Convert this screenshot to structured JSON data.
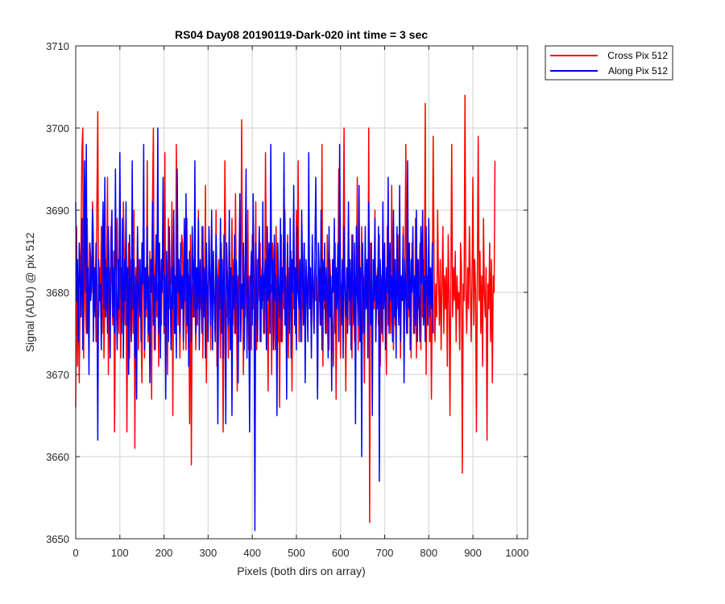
{
  "chart_data": {
    "type": "line",
    "title": "RS04 Day08 20190119-Dark-020 int time = 3 sec",
    "xlabel": "Pixels (both dirs on array)",
    "ylabel": "Signal (ADU) @ pix 512",
    "xlim": [
      0,
      1024
    ],
    "ylim": [
      3650,
      3710
    ],
    "xticks": [
      0,
      100,
      200,
      300,
      400,
      500,
      600,
      700,
      800,
      900,
      1000
    ],
    "yticks": [
      3650,
      3660,
      3670,
      3680,
      3690,
      3700,
      3710
    ],
    "grid": true,
    "legend_position": "outside-top-right",
    "x_start": 0,
    "x_step": 2,
    "series": [
      {
        "name": "Cross Pix 512",
        "color": "#ff0000",
        "y": [
          3666,
          3688,
          3671,
          3682,
          3669,
          3680,
          3686,
          3697,
          3700,
          3672,
          3694,
          3678,
          3675,
          3689,
          3681,
          3673,
          3686,
          3684,
          3680,
          3691,
          3687,
          3679,
          3683,
          3674,
          3691,
          3702,
          3677,
          3683,
          3680,
          3688,
          3675,
          3685,
          3672,
          3679,
          3684,
          3681,
          3694,
          3670,
          3683,
          3677,
          3688,
          3681,
          3676,
          3685,
          3663,
          3678,
          3682,
          3689,
          3680,
          3675,
          3687,
          3672,
          3683,
          3679,
          3691,
          3684,
          3676,
          3682,
          3663,
          3680,
          3686,
          3672,
          3684,
          3678,
          3681,
          3675,
          3690,
          3661,
          3683,
          3679,
          3687,
          3673,
          3684,
          3680,
          3676,
          3669,
          3682,
          3688,
          3672,
          3681,
          3677,
          3696,
          3674,
          3680,
          3685,
          3678,
          3667,
          3691,
          3700,
          3673,
          3682,
          3686,
          3677,
          3681,
          3671,
          3685,
          3679,
          3676,
          3683,
          3689,
          3675,
          3697,
          3674,
          3684,
          3670,
          3689,
          3678,
          3682,
          3681,
          3691,
          3665,
          3684,
          3679,
          3675,
          3698,
          3681,
          3676,
          3684,
          3672,
          3680,
          3687,
          3686,
          3673,
          3683,
          3679,
          3673,
          3689,
          3675,
          3682,
          3664,
          3687,
          3659,
          3681,
          3677,
          3684,
          3681,
          3673,
          3680,
          3676,
          3690,
          3674,
          3683,
          3678,
          3688,
          3672,
          3682,
          3680,
          3693,
          3669,
          3681,
          3676,
          3685,
          3682,
          3673,
          3689,
          3677,
          3683,
          3679,
          3675,
          3690,
          3671,
          3681,
          3684,
          3678,
          3672,
          3686,
          3680,
          3663,
          3678,
          3696,
          3684,
          3677,
          3679,
          3672,
          3686,
          3681,
          3678,
          3689,
          3676,
          3684,
          3675,
          3692,
          3680,
          3668,
          3682,
          3674,
          3684,
          3679,
          3701,
          3682,
          3670,
          3681,
          3677,
          3684,
          3676,
          3690,
          3673,
          3682,
          3680,
          3673,
          3687,
          3678,
          3681,
          3676,
          3691,
          3673,
          3684,
          3679,
          3682,
          3686,
          3674,
          3683,
          3679,
          3680,
          3675,
          3697,
          3683,
          3680,
          3668,
          3684,
          3677,
          3681,
          3670,
          3686,
          3682,
          3679,
          3673,
          3688,
          3681,
          3674,
          3680,
          3666,
          3682,
          3687,
          3674,
          3682,
          3678,
          3690,
          3681,
          3675,
          3687,
          3672,
          3683,
          3679,
          3685,
          3668,
          3681,
          3678,
          3683,
          3675,
          3690,
          3680,
          3696,
          3674,
          3682,
          3680,
          3674,
          3686,
          3679,
          3684,
          3672,
          3683,
          3681,
          3676,
          3689,
          3678,
          3682,
          3673,
          3686,
          3680,
          3675,
          3684,
          3679,
          3682,
          3668,
          3681,
          3679,
          3683,
          3676,
          3698,
          3671,
          3681,
          3678,
          3682,
          3675,
          3687,
          3680,
          3673,
          3684,
          3681,
          3680,
          3676,
          3671,
          3683,
          3686,
          3667,
          3681,
          3679,
          3695,
          3682,
          3672,
          3681,
          3677,
          3684,
          3700,
          3680,
          3668,
          3682,
          3679,
          3689,
          3676,
          3683,
          3681,
          3672,
          3687,
          3679,
          3674,
          3682,
          3680,
          3694,
          3673,
          3683,
          3678,
          3681,
          3688,
          3675,
          3682,
          3669,
          3681,
          3679,
          3684,
          3675,
          3700,
          3652,
          3686,
          3680,
          3673,
          3682,
          3678,
          3690,
          3674,
          3681,
          3683,
          3676,
          3687,
          3671,
          3680,
          3682,
          3674,
          3685,
          3679,
          3681,
          3670,
          3688,
          3676,
          3682,
          3679,
          3675,
          3693,
          3680,
          3673,
          3684,
          3676,
          3681,
          3678,
          3687,
          3677,
          3683,
          3672,
          3681,
          3679,
          3688,
          3674,
          3682,
          3698,
          3680,
          3675,
          3684,
          3677,
          3682,
          3672,
          3686,
          3683,
          3679,
          3675,
          3689,
          3672,
          3684,
          3678,
          3681,
          3686,
          3673,
          3681,
          3677,
          3684,
          3680,
          3703,
          3670,
          3682,
          3679,
          3686,
          3674,
          3682,
          3667,
          3680,
          3699,
          3683,
          3674,
          3681,
          3677,
          3690,
          3682,
          3676,
          3684,
          3673,
          3681,
          3688,
          3675,
          3682,
          3678,
          3683,
          3671,
          3687,
          3680,
          3665,
          3681,
          3698,
          3677,
          3683,
          3679,
          3685,
          3674,
          3682,
          3678,
          3680,
          3673,
          3686,
          3683,
          3658,
          3681,
          3679,
          3704,
          3680,
          3675,
          3683,
          3678,
          3688,
          3682,
          3674,
          3681,
          3694,
          3676,
          3684,
          3680,
          3663,
          3682,
          3699,
          3679,
          3685,
          3675,
          3682,
          3671,
          3689,
          3680,
          3677,
          3683,
          3662,
          3681,
          3678,
          3686,
          3674,
          3684,
          3669,
          3682,
          3680,
          3696
        ]
      },
      {
        "name": "Along Pix 512",
        "color": "#0000ff",
        "y": [
          3691,
          3679,
          3684,
          3674,
          3686,
          3681,
          3677,
          3689,
          3673,
          3684,
          3696,
          3680,
          3698,
          3675,
          3683,
          3670,
          3686,
          3679,
          3681,
          3690,
          3674,
          3683,
          3677,
          3686,
          3681,
          3662,
          3684,
          3679,
          3681,
          3673,
          3685,
          3691,
          3678,
          3694,
          3677,
          3683,
          3675,
          3688,
          3680,
          3672,
          3686,
          3690,
          3677,
          3683,
          3675,
          3695,
          3680,
          3673,
          3684,
          3678,
          3697,
          3682,
          3675,
          3689,
          3672,
          3684,
          3679,
          3691,
          3676,
          3683,
          3670,
          3687,
          3680,
          3674,
          3696,
          3678,
          3684,
          3672,
          3682,
          3667,
          3688,
          3680,
          3677,
          3684,
          3674,
          3686,
          3681,
          3698,
          3673,
          3683,
          3678,
          3688,
          3675,
          3682,
          3669,
          3684,
          3680,
          3691,
          3676,
          3682,
          3673,
          3687,
          3679,
          3700,
          3675,
          3686,
          3672,
          3684,
          3680,
          3694,
          3676,
          3682,
          3667,
          3685,
          3679,
          3674,
          3688,
          3681,
          3673,
          3683,
          3678,
          3690,
          3675,
          3682,
          3672,
          3695,
          3680,
          3684,
          3675,
          3686,
          3678,
          3682,
          3674,
          3689,
          3679,
          3692,
          3676,
          3684,
          3671,
          3685,
          3680,
          3674,
          3688,
          3682,
          3677,
          3696,
          3675,
          3683,
          3678,
          3689,
          3673,
          3684,
          3680,
          3675,
          3688,
          3677,
          3683,
          3672,
          3686,
          3680,
          3674,
          3688,
          3682,
          3676,
          3690,
          3673,
          3685,
          3679,
          3674,
          3687,
          3681,
          3664,
          3682,
          3678,
          3689,
          3675,
          3684,
          3672,
          3687,
          3680,
          3664,
          3686,
          3681,
          3676,
          3690,
          3673,
          3683,
          3665,
          3682,
          3678,
          3687,
          3675,
          3684,
          3680,
          3669,
          3683,
          3692,
          3674,
          3681,
          3678,
          3686,
          3673,
          3684,
          3695,
          3672,
          3682,
          3679,
          3663,
          3681,
          3685,
          3676,
          3692,
          3681,
          3651,
          3686,
          3680,
          3674,
          3683,
          3688,
          3674,
          3682,
          3678,
          3691,
          3675,
          3682,
          3684,
          3673,
          3688,
          3679,
          3686,
          3675,
          3698,
          3680,
          3684,
          3673,
          3687,
          3679,
          3682,
          3665,
          3686,
          3680,
          3677,
          3689,
          3674,
          3683,
          3680,
          3697,
          3676,
          3682,
          3667,
          3686,
          3680,
          3675,
          3689,
          3672,
          3684,
          3680,
          3693,
          3676,
          3683,
          3673,
          3688,
          3680,
          3678,
          3684,
          3674,
          3690,
          3682,
          3676,
          3686,
          3669,
          3684,
          3680,
          3674,
          3697,
          3678,
          3683,
          3672,
          3687,
          3681,
          3675,
          3685,
          3694,
          3680,
          3667,
          3686,
          3682,
          3676,
          3690,
          3673,
          3684,
          3679,
          3686,
          3675,
          3683,
          3680,
          3672,
          3688,
          3677,
          3682,
          3668,
          3684,
          3680,
          3689,
          3675,
          3683,
          3678,
          3686,
          3674,
          3698,
          3681,
          3676,
          3684,
          3672,
          3688,
          3680,
          3677,
          3683,
          3675,
          3691,
          3679,
          3684,
          3673,
          3687,
          3680,
          3676,
          3686,
          3664,
          3688,
          3680,
          3676,
          3693,
          3674,
          3683,
          3660,
          3686,
          3680,
          3675,
          3688,
          3678,
          3684,
          3672,
          3691,
          3680,
          3676,
          3686,
          3665,
          3684,
          3679,
          3689,
          3674,
          3682,
          3678,
          3688,
          3657,
          3684,
          3680,
          3675,
          3691,
          3678,
          3686,
          3673,
          3683,
          3680,
          3694,
          3675,
          3686,
          3679,
          3682,
          3674,
          3690,
          3677,
          3684,
          3672,
          3688,
          3680,
          3676,
          3693,
          3674,
          3682,
          3679,
          3687,
          3669,
          3684,
          3680,
          3675,
          3696,
          3678,
          3686,
          3673,
          3684,
          3680,
          3688,
          3675,
          3682,
          3676,
          3690,
          3674,
          3684,
          3679,
          3674,
          3688,
          3681,
          3690,
          3676,
          3682,
          3674,
          3688,
          3680,
          3676,
          3689,
          3677,
          3683,
          3678,
          3686,
          3675
        ]
      }
    ]
  }
}
